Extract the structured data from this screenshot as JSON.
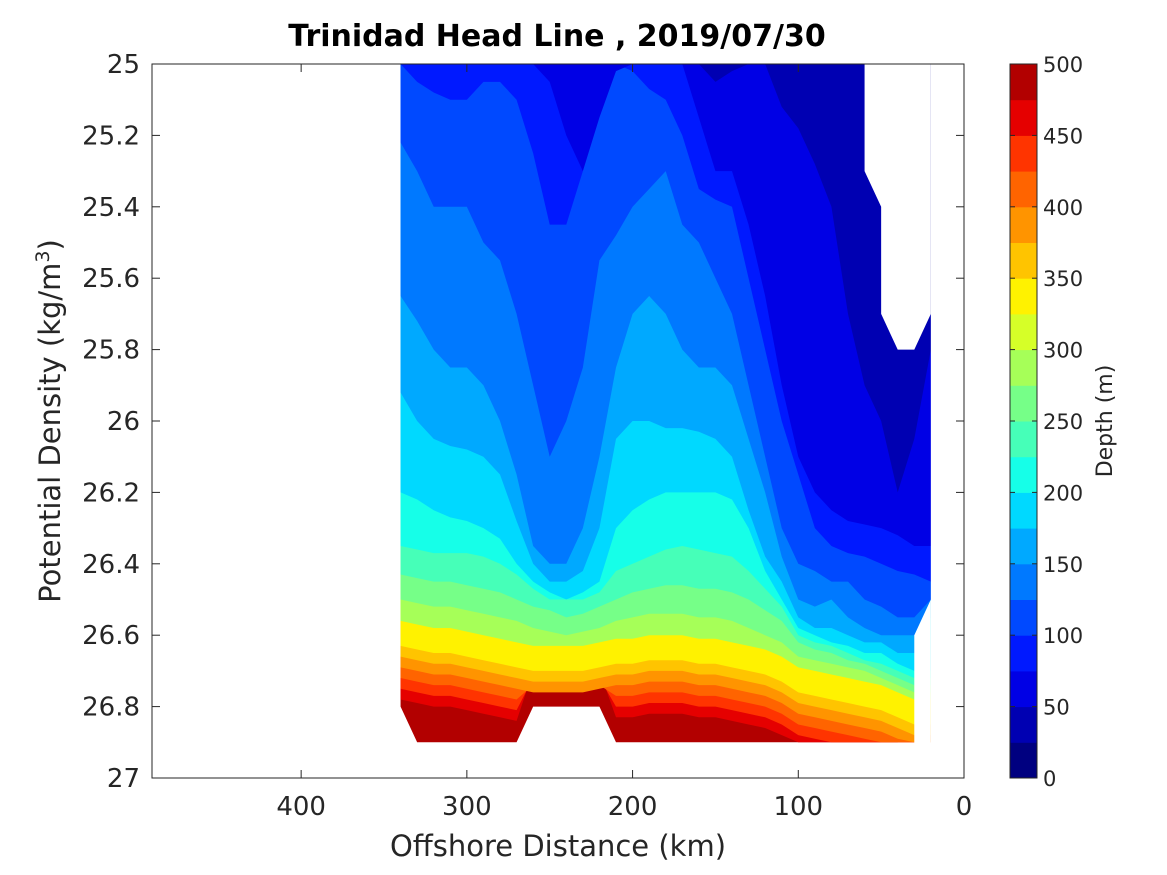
{
  "chart_data": {
    "type": "filled_contour",
    "title": "Trinidad Head Line , 2019/07/30",
    "xlabel": "Offshore Distance (km)",
    "ylabel": "Potential Density (kg/m",
    "ylabel_superscript": "3",
    "ylabel_suffix": ")",
    "xlim": [
      490,
      0
    ],
    "ylim": [
      27,
      25
    ],
    "x_reversed": true,
    "y_reversed": true,
    "xticks": [
      400,
      300,
      200,
      100,
      0
    ],
    "yticks": [
      25,
      25.2,
      25.4,
      25.6,
      25.8,
      26,
      26.2,
      26.4,
      26.6,
      26.8,
      27
    ],
    "colorbar": {
      "label": "Depth (m)",
      "min": 0,
      "max": 500,
      "ticks": [
        0,
        50,
        100,
        150,
        200,
        250,
        300,
        350,
        400,
        450,
        500
      ],
      "levels": [
        0,
        25,
        50,
        75,
        100,
        125,
        150,
        175,
        200,
        225,
        250,
        275,
        300,
        325,
        350,
        375,
        400,
        425,
        450,
        475,
        500
      ],
      "colors": [
        "#000080",
        "#0000b2",
        "#0000e5",
        "#0019ff",
        "#0049ff",
        "#0079ff",
        "#00a9ff",
        "#00d9ff",
        "#16ffe8",
        "#46ffb8",
        "#76ff88",
        "#a6ff58",
        "#d6ff28",
        "#fff200",
        "#ffc400",
        "#ff9400",
        "#ff6400",
        "#ff3400",
        "#e50000",
        "#b20000"
      ]
    },
    "x": [
      340,
      330,
      320,
      310,
      300,
      290,
      280,
      270,
      260,
      250,
      240,
      230,
      220,
      210,
      200,
      190,
      180,
      170,
      160,
      150,
      140,
      130,
      120,
      110,
      100,
      90,
      80,
      70,
      60,
      50,
      40,
      30,
      20
    ],
    "contour_lines": [
      {
        "level": 25,
        "sigma": [
          25.0,
          25.0,
          25.0,
          25.0,
          25.0,
          25.0,
          25.0,
          25.0,
          25.0,
          25.0,
          25.0,
          25.0,
          25.0,
          25.0,
          25.0,
          25.0,
          25.0,
          25.0,
          25.0,
          25.0,
          25.0,
          25.0,
          25.0,
          25.0,
          25.0,
          25.0,
          25.0,
          25.0,
          25.0,
          25.4,
          25.7,
          25.8,
          25.7
        ]
      },
      {
        "level": 50,
        "sigma": [
          25.0,
          25.0,
          25.0,
          25.0,
          25.0,
          25.0,
          25.0,
          25.0,
          25.0,
          25.0,
          25.0,
          25.0,
          25.0,
          25.0,
          25.0,
          25.0,
          25.0,
          25.0,
          25.0,
          25.05,
          25.02,
          25.0,
          25.0,
          25.12,
          25.18,
          25.28,
          25.4,
          25.7,
          25.9,
          26.0,
          26.2,
          26.05,
          25.8
        ]
      },
      {
        "level": 75,
        "sigma": [
          25.0,
          25.0,
          25.0,
          25.0,
          25.0,
          25.0,
          25.0,
          25.0,
          25.0,
          25.05,
          25.2,
          25.3,
          25.15,
          25.02,
          25.0,
          25.0,
          25.0,
          25.0,
          25.15,
          25.3,
          25.3,
          25.45,
          25.65,
          25.9,
          26.1,
          26.2,
          26.25,
          26.28,
          26.29,
          26.3,
          26.32,
          26.35,
          26.35
        ]
      },
      {
        "level": 100,
        "sigma": [
          25.0,
          25.05,
          25.08,
          25.1,
          25.1,
          25.05,
          25.05,
          25.1,
          25.25,
          25.45,
          25.45,
          25.3,
          25.1,
          25.0,
          25.02,
          25.07,
          25.1,
          25.2,
          25.35,
          25.38,
          25.4,
          25.6,
          25.8,
          26.0,
          26.15,
          26.3,
          26.35,
          26.37,
          26.38,
          26.4,
          26.42,
          26.43,
          26.45
        ]
      },
      {
        "level": 125,
        "sigma": [
          25.22,
          25.3,
          25.4,
          25.4,
          25.4,
          25.5,
          25.55,
          25.7,
          25.9,
          26.1,
          26.0,
          25.85,
          25.55,
          25.48,
          25.4,
          25.35,
          25.3,
          25.45,
          25.5,
          25.6,
          25.7,
          25.9,
          26.1,
          26.3,
          26.4,
          26.42,
          26.45,
          26.45,
          26.5,
          26.52,
          26.55,
          26.55,
          26.5
        ]
      },
      {
        "level": 150,
        "sigma": [
          25.65,
          25.72,
          25.8,
          25.85,
          25.85,
          25.9,
          26.0,
          26.15,
          26.35,
          26.4,
          26.4,
          26.3,
          26.1,
          25.85,
          25.7,
          25.65,
          25.7,
          25.8,
          25.85,
          25.85,
          25.9,
          26.05,
          26.2,
          26.38,
          26.5,
          26.52,
          26.5,
          26.55,
          26.58,
          26.6,
          26.6,
          26.6,
          26.5
        ]
      },
      {
        "level": 175,
        "sigma": [
          25.92,
          26.0,
          26.05,
          26.07,
          26.08,
          26.1,
          26.15,
          26.28,
          26.4,
          26.45,
          26.45,
          26.42,
          26.3,
          26.05,
          26.0,
          26.0,
          26.02,
          26.02,
          26.03,
          26.05,
          26.1,
          26.25,
          26.38,
          26.45,
          26.55,
          26.58,
          26.58,
          26.6,
          26.62,
          26.62,
          26.65,
          26.65,
          26.55
        ]
      },
      {
        "level": 200,
        "sigma": [
          26.2,
          26.22,
          26.25,
          26.27,
          26.28,
          26.3,
          26.33,
          26.4,
          26.45,
          26.48,
          26.5,
          26.48,
          26.45,
          26.3,
          26.25,
          26.22,
          26.2,
          26.2,
          26.2,
          26.2,
          26.22,
          26.3,
          26.42,
          26.5,
          26.58,
          26.6,
          26.62,
          26.63,
          26.65,
          26.65,
          26.68,
          26.7,
          26.7
        ]
      },
      {
        "level": 225,
        "sigma": [
          26.35,
          26.36,
          26.37,
          26.37,
          26.37,
          26.38,
          26.4,
          26.43,
          26.47,
          26.5,
          26.5,
          26.5,
          26.48,
          26.42,
          26.4,
          26.38,
          26.36,
          26.35,
          26.36,
          26.37,
          26.38,
          26.42,
          26.47,
          26.52,
          26.6,
          26.62,
          26.63,
          26.65,
          26.67,
          26.68,
          26.7,
          26.72,
          26.72
        ]
      },
      {
        "level": 250,
        "sigma": [
          26.43,
          26.44,
          26.45,
          26.45,
          26.46,
          26.47,
          26.48,
          26.5,
          26.52,
          26.53,
          26.55,
          26.54,
          26.52,
          26.5,
          26.48,
          26.47,
          26.46,
          26.46,
          26.47,
          26.47,
          26.48,
          26.5,
          26.53,
          26.56,
          26.62,
          26.64,
          26.65,
          26.67,
          26.68,
          26.7,
          26.72,
          26.74,
          26.74
        ]
      },
      {
        "level": 275,
        "sigma": [
          26.5,
          26.51,
          26.52,
          26.52,
          26.53,
          26.54,
          26.55,
          26.56,
          26.58,
          26.59,
          26.6,
          26.59,
          26.58,
          26.56,
          26.55,
          26.54,
          26.54,
          26.54,
          26.55,
          26.55,
          26.56,
          26.58,
          26.6,
          26.62,
          26.66,
          26.67,
          26.68,
          26.69,
          26.7,
          26.72,
          26.74,
          26.76,
          26.76
        ]
      },
      {
        "level": 300,
        "sigma": [
          26.56,
          26.57,
          26.58,
          26.58,
          26.59,
          26.6,
          26.61,
          26.62,
          26.63,
          26.63,
          26.63,
          26.63,
          26.62,
          26.61,
          26.61,
          26.6,
          26.6,
          26.6,
          26.61,
          26.61,
          26.62,
          26.63,
          26.64,
          26.66,
          26.69,
          26.7,
          26.71,
          26.72,
          26.73,
          26.74,
          26.76,
          26.78,
          26.78
        ]
      }
    ],
    "data_coverage_x": [
      340,
      20
    ],
    "data_coverage_sigma_bottom": 26.9
  }
}
